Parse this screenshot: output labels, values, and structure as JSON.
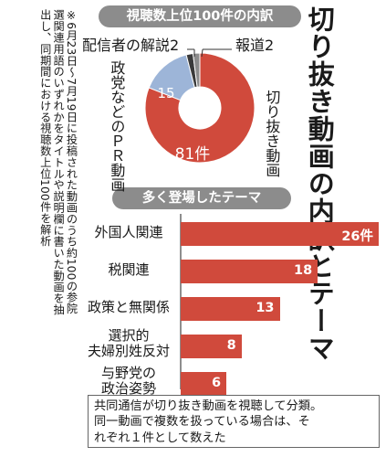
{
  "title": "切り抜き動画の内訳とテーマ",
  "note": "※6月23日～7月19日に投稿された動画のうち約100の参院選関連用語のいずれかをタイトルや説明欄に書いた動画を抽出し、同期間における視聴数上位100件を解析",
  "footnote": {
    "line1": "共同通信が切り抜き動画を視聴して分類。",
    "line2": "同一動画で複数を扱っている場合は、そ",
    "line3": "れぞれ１件として数えた"
  },
  "colors": {
    "red": "#d04a3c",
    "blue": "#9db5d8",
    "gray": "#8c8c8c",
    "dark": "#3a3a3a"
  },
  "chart_data": [
    {
      "type": "pie",
      "title": "視聴数上位100件の内訳",
      "slices": [
        {
          "label": "切り抜き動画",
          "value": 81,
          "value_label": "81件",
          "color": "#d04a3c"
        },
        {
          "label": "政党などのＰＲ動画",
          "value": 15,
          "value_label": "15",
          "color": "#9db5d8"
        },
        {
          "label": "配信者の解説",
          "value": 2,
          "value_label": "2",
          "color": "#3a3a3a"
        },
        {
          "label": "報道",
          "value": 2,
          "value_label": "2",
          "color": "#8c8c8c"
        }
      ]
    },
    {
      "type": "bar",
      "title": "多く登場したテーマ",
      "categories": [
        "外国人関連",
        "税関連",
        "政策と無関係",
        "選択的夫婦別姓反対",
        "与野党の政治姿勢"
      ],
      "category_lines": [
        [
          "外国人関連"
        ],
        [
          "税関連"
        ],
        [
          "政策と無関係"
        ],
        [
          "選択的",
          "夫婦別姓反対"
        ],
        [
          "与野党の",
          "政治姿勢"
        ]
      ],
      "values": [
        26,
        18,
        13,
        8,
        6
      ],
      "value_labels": [
        "26件",
        "18",
        "13",
        "8",
        "6"
      ],
      "xlim": [
        0,
        26
      ]
    }
  ]
}
